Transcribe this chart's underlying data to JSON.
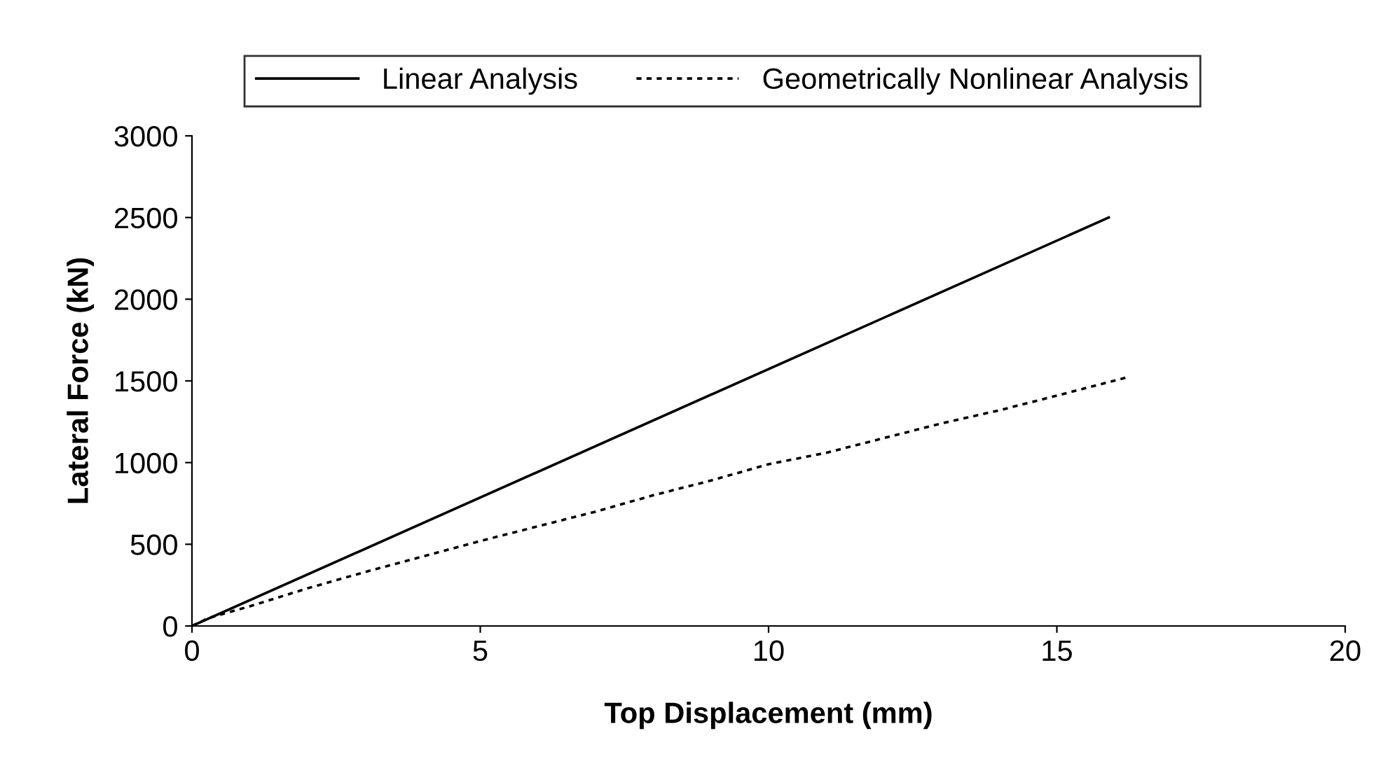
{
  "chart_data": {
    "type": "line",
    "xlabel": "Top Displacement (mm)",
    "ylabel": "Lateral Force (kN)",
    "xlim": [
      0,
      20
    ],
    "xticks": [
      0,
      5,
      10,
      15,
      20
    ],
    "ylim": [
      0,
      3000
    ],
    "yticks": [
      0,
      500,
      1000,
      1500,
      2000,
      2500,
      3000
    ],
    "grid": false,
    "legend": "top",
    "marker": "none",
    "series": [
      {
        "name": "Linear Analysis",
        "color": "#000000",
        "line_style": "solid",
        "x": [
          0,
          15.9
        ],
        "values": [
          0,
          2500
        ]
      },
      {
        "name": "Geometrically Nonlinear Analysis",
        "color": "#000000",
        "line_style": "dotted",
        "x": [
          0,
          0.3,
          1,
          2,
          3,
          4,
          5,
          6,
          7,
          8,
          9,
          10,
          11,
          12,
          13,
          14,
          15,
          16.2
        ],
        "values": [
          0,
          50,
          120,
          230,
          330,
          425,
          520,
          610,
          700,
          800,
          890,
          990,
          1060,
          1150,
          1240,
          1320,
          1410,
          1520
        ]
      }
    ]
  }
}
